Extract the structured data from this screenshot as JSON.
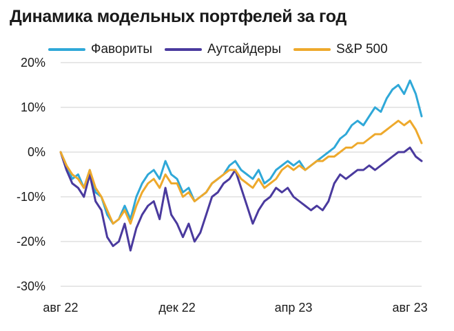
{
  "title": "Динамика модельных портфелей за год",
  "colors": {
    "favorites": "#2fa8d8",
    "outsiders": "#4a3a9e",
    "sp500": "#eea92c",
    "grid": "#cfcfcf"
  },
  "legend": [
    {
      "label": "Фавориты",
      "color": "#2fa8d8"
    },
    {
      "label": "Аутсайдеры",
      "color": "#4a3a9e"
    },
    {
      "label": "S&P 500",
      "color": "#eea92c"
    }
  ],
  "chart_data": {
    "type": "line",
    "title": "Динамика модельных портфелей за год",
    "xlabel": "",
    "ylabel": "",
    "x_range": [
      0,
      12.4
    ],
    "ylim": [
      -30,
      20
    ],
    "y_ticks": [
      20,
      10,
      0,
      -10,
      -20,
      -30
    ],
    "y_tick_labels": [
      "20%",
      "10%",
      "0%",
      "-10%",
      "-20%",
      "-30%"
    ],
    "x_ticks": [
      0,
      4,
      8,
      12
    ],
    "x_tick_labels": [
      "авг 22",
      "дек 22",
      "апр 23",
      "авг 23"
    ],
    "grid": "horizontal",
    "legend_position": "top",
    "series": [
      {
        "name": "Фавориты",
        "color": "#2fa8d8",
        "x": [
          0,
          0.2,
          0.4,
          0.6,
          0.8,
          1.0,
          1.2,
          1.4,
          1.6,
          1.8,
          2.0,
          2.2,
          2.4,
          2.6,
          2.8,
          3.0,
          3.2,
          3.4,
          3.6,
          3.8,
          4.0,
          4.2,
          4.4,
          4.6,
          4.8,
          5.0,
          5.2,
          5.4,
          5.6,
          5.8,
          6.0,
          6.2,
          6.4,
          6.6,
          6.8,
          7.0,
          7.2,
          7.4,
          7.6,
          7.8,
          8.0,
          8.2,
          8.4,
          8.6,
          8.8,
          9.0,
          9.2,
          9.4,
          9.6,
          9.8,
          10.0,
          10.2,
          10.4,
          10.6,
          10.8,
          11.0,
          11.2,
          11.4,
          11.6,
          11.8,
          12.0,
          12.2,
          12.4
        ],
        "values": [
          0,
          -3,
          -6,
          -5,
          -8,
          -4,
          -9,
          -10,
          -14,
          -16,
          -15,
          -12,
          -15,
          -10,
          -7,
          -5,
          -4,
          -6,
          -2,
          -5,
          -6,
          -9,
          -8,
          -11,
          -10,
          -9,
          -7,
          -6,
          -5,
          -3,
          -2,
          -4,
          -5,
          -6,
          -4,
          -7,
          -6,
          -4,
          -3,
          -2,
          -3,
          -2,
          -4,
          -3,
          -2,
          -1,
          0,
          1,
          3,
          4,
          6,
          7,
          6,
          8,
          10,
          9,
          12,
          14,
          15,
          13,
          16,
          13,
          8
        ]
      },
      {
        "name": "Аутсайдеры",
        "color": "#4a3a9e",
        "x": [
          0,
          0.2,
          0.4,
          0.6,
          0.8,
          1.0,
          1.2,
          1.4,
          1.6,
          1.8,
          2.0,
          2.2,
          2.4,
          2.6,
          2.8,
          3.0,
          3.2,
          3.4,
          3.6,
          3.8,
          4.0,
          4.2,
          4.4,
          4.6,
          4.8,
          5.0,
          5.2,
          5.4,
          5.6,
          5.8,
          6.0,
          6.2,
          6.4,
          6.6,
          6.8,
          7.0,
          7.2,
          7.4,
          7.6,
          7.8,
          8.0,
          8.2,
          8.4,
          8.6,
          8.8,
          9.0,
          9.2,
          9.4,
          9.6,
          9.8,
          10.0,
          10.2,
          10.4,
          10.6,
          10.8,
          11.0,
          11.2,
          11.4,
          11.6,
          11.8,
          12.0,
          12.2,
          12.4
        ],
        "values": [
          0,
          -4,
          -7,
          -8,
          -10,
          -5,
          -11,
          -13,
          -19,
          -21,
          -20,
          -16,
          -22,
          -17,
          -14,
          -12,
          -11,
          -15,
          -8,
          -14,
          -16,
          -19,
          -16,
          -20,
          -18,
          -14,
          -10,
          -9,
          -7,
          -6,
          -4,
          -8,
          -12,
          -16,
          -13,
          -11,
          -10,
          -8,
          -9,
          -8,
          -10,
          -11,
          -12,
          -13,
          -12,
          -13,
          -11,
          -7,
          -5,
          -6,
          -5,
          -4,
          -4,
          -3,
          -4,
          -3,
          -2,
          -1,
          0,
          0,
          1,
          -1,
          -2
        ]
      },
      {
        "name": "S&P 500",
        "color": "#eea92c",
        "x": [
          0,
          0.2,
          0.4,
          0.6,
          0.8,
          1.0,
          1.2,
          1.4,
          1.6,
          1.8,
          2.0,
          2.2,
          2.4,
          2.6,
          2.8,
          3.0,
          3.2,
          3.4,
          3.6,
          3.8,
          4.0,
          4.2,
          4.4,
          4.6,
          4.8,
          5.0,
          5.2,
          5.4,
          5.6,
          5.8,
          6.0,
          6.2,
          6.4,
          6.6,
          6.8,
          7.0,
          7.2,
          7.4,
          7.6,
          7.8,
          8.0,
          8.2,
          8.4,
          8.6,
          8.8,
          9.0,
          9.2,
          9.4,
          9.6,
          9.8,
          10.0,
          10.2,
          10.4,
          10.6,
          10.8,
          11.0,
          11.2,
          11.4,
          11.6,
          11.8,
          12.0,
          12.2,
          12.4
        ],
        "values": [
          0,
          -3,
          -5,
          -6,
          -8,
          -4,
          -8,
          -10,
          -13,
          -16,
          -15,
          -13,
          -16,
          -12,
          -9,
          -7,
          -6,
          -8,
          -5,
          -7,
          -7,
          -10,
          -9,
          -11,
          -10,
          -9,
          -7,
          -6,
          -5,
          -4,
          -4,
          -6,
          -7,
          -8,
          -6,
          -8,
          -7,
          -6,
          -4,
          -3,
          -4,
          -3,
          -4,
          -3,
          -2,
          -2,
          -1,
          -1,
          0,
          1,
          1,
          2,
          2,
          3,
          4,
          4,
          5,
          6,
          7,
          6,
          7,
          5,
          2
        ]
      }
    ]
  }
}
